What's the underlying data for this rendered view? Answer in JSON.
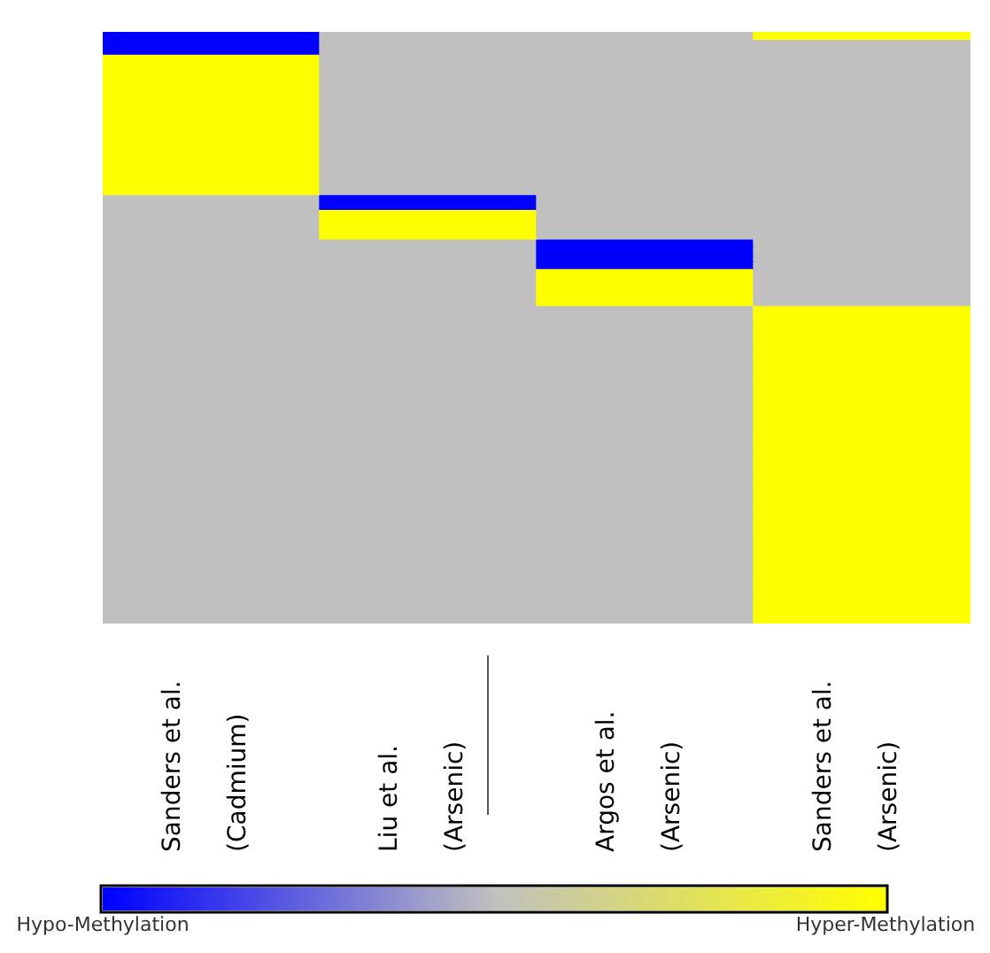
{
  "chart_data": {
    "type": "heatmap",
    "categories": [
      "Sanders et al.\n(Cadmium)",
      "Liu et al.\n(Arsenic)",
      "Argos et al.\n(Arsenic)",
      "Sanders et al.\n(Arsenic)"
    ],
    "y_categories": [
      null,
      null,
      null,
      null,
      null,
      null,
      null,
      null,
      null,
      null,
      null,
      null,
      null,
      null,
      null,
      null,
      null,
      null,
      null,
      null,
      null,
      null,
      null,
      null,
      null,
      null,
      null,
      null,
      null,
      null,
      null,
      null,
      null,
      null,
      null,
      null,
      null,
      null,
      null,
      null,
      null,
      null,
      null,
      null,
      null,
      null,
      null,
      null,
      null,
      null,
      null,
      null,
      null,
      null,
      null,
      null,
      null,
      null,
      null,
      null,
      null,
      null,
      null,
      null,
      null,
      null,
      null,
      null,
      null,
      null,
      null,
      null,
      null,
      null,
      null,
      null,
      null,
      null,
      null,
      null
    ],
    "cells": [
      [
        -1,
        0,
        0,
        1
      ],
      [
        -1,
        0,
        0,
        0
      ],
      [
        -1,
        0,
        0,
        0
      ],
      [
        1,
        0,
        0,
        0
      ],
      [
        1,
        0,
        0,
        0
      ],
      [
        1,
        0,
        0,
        0
      ],
      [
        1,
        0,
        0,
        0
      ],
      [
        1,
        0,
        0,
        0
      ],
      [
        1,
        0,
        0,
        0
      ],
      [
        1,
        0,
        0,
        0
      ],
      [
        1,
        0,
        0,
        0
      ],
      [
        1,
        0,
        0,
        0
      ],
      [
        1,
        0,
        0,
        0
      ],
      [
        1,
        0,
        0,
        0
      ],
      [
        1,
        0,
        0,
        0
      ],
      [
        1,
        0,
        0,
        0
      ],
      [
        1,
        0,
        0,
        0
      ],
      [
        1,
        0,
        0,
        0
      ],
      [
        1,
        0,
        0,
        0
      ],
      [
        1,
        0,
        0,
        0
      ],
      [
        1,
        0,
        0,
        0
      ],
      [
        1,
        0,
        0,
        0
      ],
      [
        0,
        -1,
        0,
        0
      ],
      [
        0,
        -1,
        0,
        0
      ],
      [
        0,
        1,
        0,
        0
      ],
      [
        0,
        1,
        0,
        0
      ],
      [
        0,
        1,
        0,
        0
      ],
      [
        0,
        1,
        0,
        0
      ],
      [
        0,
        0,
        -1,
        0
      ],
      [
        0,
        0,
        -1,
        0
      ],
      [
        0,
        0,
        -1,
        0
      ],
      [
        0,
        0,
        -1,
        0
      ],
      [
        0,
        0,
        1,
        0
      ],
      [
        0,
        0,
        1,
        0
      ],
      [
        0,
        0,
        1,
        0
      ],
      [
        0,
        0,
        1,
        0
      ],
      [
        0,
        0,
        1,
        0
      ],
      [
        0,
        0,
        0,
        1
      ],
      [
        0,
        0,
        0,
        1
      ],
      [
        0,
        0,
        0,
        1
      ],
      [
        0,
        0,
        0,
        1
      ],
      [
        0,
        0,
        0,
        1
      ],
      [
        0,
        0,
        0,
        1
      ],
      [
        0,
        0,
        0,
        1
      ],
      [
        0,
        0,
        0,
        1
      ],
      [
        0,
        0,
        0,
        1
      ],
      [
        0,
        0,
        0,
        1
      ],
      [
        0,
        0,
        0,
        1
      ],
      [
        0,
        0,
        0,
        1
      ],
      [
        0,
        0,
        0,
        1
      ],
      [
        0,
        0,
        0,
        1
      ],
      [
        0,
        0,
        0,
        1
      ],
      [
        0,
        0,
        0,
        1
      ],
      [
        0,
        0,
        0,
        1
      ],
      [
        0,
        0,
        0,
        1
      ],
      [
        0,
        0,
        0,
        1
      ],
      [
        0,
        0,
        0,
        1
      ],
      [
        0,
        0,
        0,
        1
      ],
      [
        0,
        0,
        0,
        1
      ],
      [
        0,
        0,
        0,
        1
      ],
      [
        0,
        0,
        0,
        1
      ],
      [
        0,
        0,
        0,
        1
      ],
      [
        0,
        0,
        0,
        1
      ],
      [
        0,
        0,
        0,
        1
      ],
      [
        0,
        0,
        0,
        1
      ],
      [
        0,
        0,
        0,
        1
      ],
      [
        0,
        0,
        0,
        1
      ],
      [
        0,
        0,
        0,
        1
      ],
      [
        0,
        0,
        0,
        1
      ],
      [
        0,
        0,
        0,
        1
      ],
      [
        0,
        0,
        0,
        1
      ],
      [
        0,
        0,
        0,
        1
      ],
      [
        0,
        0,
        0,
        1
      ],
      [
        0,
        0,
        0,
        1
      ],
      [
        0,
        0,
        0,
        1
      ],
      [
        0,
        0,
        0,
        1
      ],
      [
        0,
        0,
        0,
        1
      ],
      [
        0,
        0,
        0,
        1
      ],
      [
        0,
        0,
        0,
        1
      ],
      [
        0,
        0,
        0,
        1
      ]
    ],
    "clim": [
      -1,
      1
    ],
    "cticks": [
      {
        "value": -1,
        "label": "Hypo-Methylation"
      },
      {
        "value": 1,
        "label": "Hyper-Methylation"
      }
    ]
  }
}
